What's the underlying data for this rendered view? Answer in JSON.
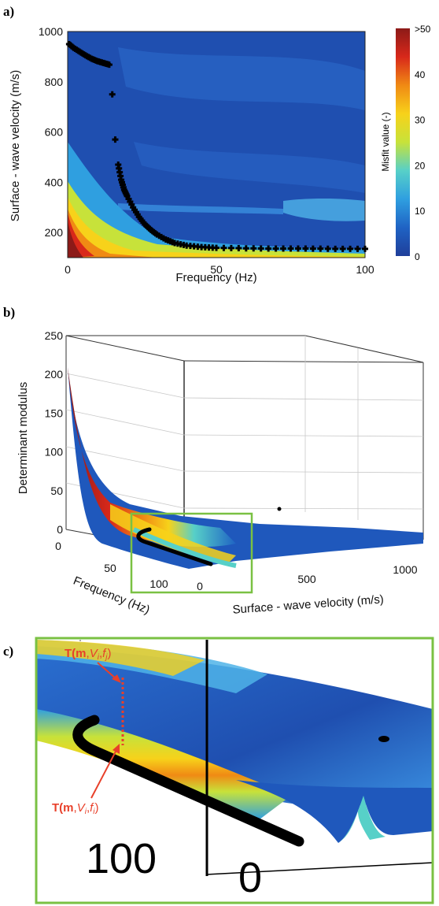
{
  "chart_data": [
    {
      "type": "heatmap",
      "panel_label": "a)",
      "xlabel": "Frequency (Hz)",
      "ylabel": "Surface - wave velocity (m/s)",
      "xlim": [
        0,
        100
      ],
      "ylim": [
        100,
        1000
      ],
      "xticks": [
        "0",
        "50",
        "100"
      ],
      "yticks": [
        "200",
        "400",
        "600",
        "800",
        "1000"
      ],
      "colorbar": {
        "label": "Misfit value (-)",
        "ticks": [
          "0",
          "10",
          "20",
          "30",
          "40",
          ">50"
        ],
        "range": [
          0,
          50
        ],
        "colors": [
          "#1f3f9a",
          "#1f63c4",
          "#2f9fe0",
          "#57d0c8",
          "#c7e23a",
          "#f7d21a",
          "#f08a14",
          "#d8281a",
          "#8c1a18"
        ]
      },
      "grid": false,
      "series": [
        {
          "type": "scatter",
          "marker_color": "#000000",
          "x": [
            0.5,
            2,
            4,
            6,
            8,
            10,
            12,
            14,
            15,
            16,
            17,
            18,
            19,
            20,
            22,
            24,
            26,
            28,
            30,
            33,
            36,
            40,
            45,
            50,
            60,
            70,
            80,
            90,
            100
          ],
          "y": [
            950,
            935,
            920,
            905,
            892,
            882,
            875,
            868,
            750,
            570,
            470,
            410,
            370,
            345,
            300,
            262,
            232,
            210,
            192,
            172,
            158,
            148,
            142,
            139,
            137,
            136,
            136,
            135,
            135
          ]
        }
      ]
    },
    {
      "type": "surface",
      "panel_label": "b)",
      "xlabel": "Frequency (Hz)",
      "ylabel": "Surface - wave velocity (m/s)",
      "zlabel": "Determinant modulus",
      "xticks": [
        "0",
        "50",
        "100"
      ],
      "yticks": [
        "0",
        "500",
        "1000"
      ],
      "zticks": [
        "0",
        "50",
        "100",
        "150",
        "200",
        "250"
      ],
      "zlim": [
        0,
        250
      ],
      "highlight_box_color": "#7ac143"
    },
    {
      "type": "surface",
      "panel_label": "c)",
      "tick_labels": [
        "100",
        "0"
      ],
      "annotations": [
        {
          "prefix": "T(",
          "bold": "m",
          "sep1": ",",
          "v": "V",
          "vsub": "i",
          "sep2": ",",
          "f": "f",
          "fsub": "j",
          "suffix": ")"
        },
        {
          "prefix": "T(",
          "bold": "m",
          "sep1": ",",
          "v": "V",
          "vsub": "i",
          "sep2": ",",
          "f": "f",
          "fsub": "i",
          "suffix": ")"
        }
      ],
      "annotation_color": "#e8402a",
      "frame_color": "#7ac143"
    }
  ]
}
